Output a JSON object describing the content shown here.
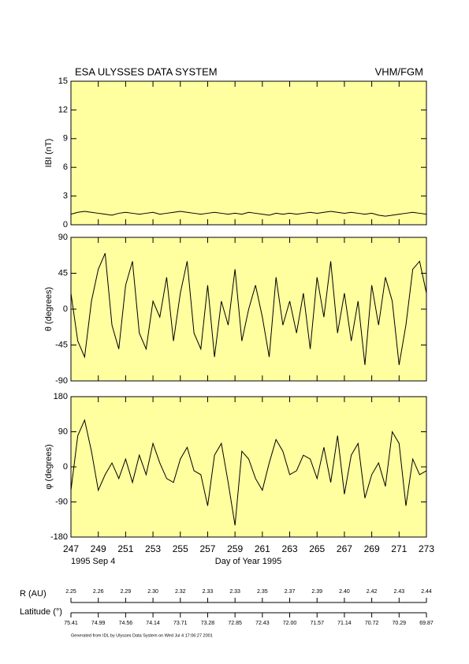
{
  "header": {
    "title": "ESA ULYSSES DATA SYSTEM",
    "instrument": "VHM/FGM"
  },
  "chart_data": [
    {
      "type": "line",
      "y_label": "IBI (nT)",
      "xlim": [
        247,
        273
      ],
      "xticks": [
        247,
        249,
        251,
        253,
        255,
        257,
        259,
        261,
        263,
        265,
        267,
        269,
        271,
        273
      ],
      "ylim": [
        0,
        15
      ],
      "yticks": [
        0,
        3,
        6,
        9,
        12,
        15
      ],
      "background": "#ffffa0",
      "x": [
        247,
        247.5,
        248,
        248.5,
        249,
        249.5,
        250,
        250.5,
        251,
        251.5,
        252,
        252.5,
        253,
        253.5,
        254,
        254.5,
        255,
        255.5,
        256,
        256.5,
        257,
        257.5,
        258,
        258.5,
        259,
        259.5,
        260,
        260.5,
        261,
        261.5,
        262,
        262.5,
        263,
        263.5,
        264,
        264.5,
        265,
        265.5,
        266,
        266.5,
        267,
        267.5,
        268,
        268.5,
        269,
        269.5,
        270,
        270.5,
        271,
        271.5,
        272,
        272.5,
        273
      ],
      "series": [
        {
          "color": "#000000",
          "values": [
            1.1,
            1.3,
            1.4,
            1.3,
            1.2,
            1.1,
            1.0,
            1.2,
            1.3,
            1.2,
            1.1,
            1.2,
            1.3,
            1.1,
            1.2,
            1.3,
            1.4,
            1.3,
            1.2,
            1.1,
            1.2,
            1.3,
            1.2,
            1.1,
            1.2,
            1.1,
            1.3,
            1.2,
            1.1,
            1.0,
            1.2,
            1.1,
            1.2,
            1.1,
            1.2,
            1.3,
            1.2,
            1.3,
            1.4,
            1.3,
            1.2,
            1.3,
            1.2,
            1.1,
            1.2,
            1.0,
            0.9,
            1.0,
            1.1,
            1.2,
            1.3,
            1.2,
            1.1
          ]
        }
      ]
    },
    {
      "type": "line",
      "y_label": "θ (degrees)",
      "xlim": [
        247,
        273
      ],
      "xticks": [
        247,
        249,
        251,
        253,
        255,
        257,
        259,
        261,
        263,
        265,
        267,
        269,
        271,
        273
      ],
      "ylim": [
        -90,
        90
      ],
      "yticks": [
        -90,
        -45,
        0,
        45,
        90
      ],
      "background": "#ffffa0",
      "x": [
        247,
        247.5,
        248,
        248.5,
        249,
        249.5,
        250,
        250.5,
        251,
        251.5,
        252,
        252.5,
        253,
        253.5,
        254,
        254.5,
        255,
        255.5,
        256,
        256.5,
        257,
        257.5,
        258,
        258.5,
        259,
        259.5,
        260,
        260.5,
        261,
        261.5,
        262,
        262.5,
        263,
        263.5,
        264,
        264.5,
        265,
        265.5,
        266,
        266.5,
        267,
        267.5,
        268,
        268.5,
        269,
        269.5,
        270,
        270.5,
        271,
        271.5,
        272,
        272.5,
        273
      ],
      "series": [
        {
          "color": "#000000",
          "values": [
            20,
            -40,
            -60,
            10,
            50,
            70,
            -20,
            -50,
            30,
            60,
            -30,
            -50,
            10,
            -10,
            40,
            -40,
            20,
            60,
            -30,
            -50,
            30,
            -60,
            10,
            -20,
            50,
            -40,
            0,
            30,
            -10,
            -60,
            40,
            -20,
            10,
            -30,
            20,
            -50,
            40,
            -10,
            60,
            -30,
            20,
            -40,
            10,
            -70,
            30,
            -20,
            40,
            10,
            -70,
            -20,
            50,
            60,
            20
          ]
        }
      ]
    },
    {
      "type": "line",
      "y_label": "φ (degrees)",
      "x_label": "Day of Year 1995",
      "start_date": "1995 Sep  4",
      "xlim": [
        247,
        273
      ],
      "xticks": [
        247,
        249,
        251,
        253,
        255,
        257,
        259,
        261,
        263,
        265,
        267,
        269,
        271,
        273
      ],
      "ylim": [
        -180,
        180
      ],
      "yticks": [
        -180,
        -90,
        0,
        90,
        180
      ],
      "background": "#ffffa0",
      "x": [
        247,
        247.5,
        248,
        248.5,
        249,
        249.5,
        250,
        250.5,
        251,
        251.5,
        252,
        252.5,
        253,
        253.5,
        254,
        254.5,
        255,
        255.5,
        256,
        256.5,
        257,
        257.5,
        258,
        258.5,
        259,
        259.5,
        260,
        260.5,
        261,
        261.5,
        262,
        262.5,
        263,
        263.5,
        264,
        264.5,
        265,
        265.5,
        266,
        266.5,
        267,
        267.5,
        268,
        268.5,
        269,
        269.5,
        270,
        270.5,
        271,
        271.5,
        272,
        272.5,
        273
      ],
      "series": [
        {
          "color": "#000000",
          "values": [
            -60,
            80,
            120,
            40,
            -60,
            -20,
            10,
            -30,
            20,
            -40,
            30,
            -20,
            60,
            10,
            -30,
            -40,
            20,
            50,
            -10,
            -20,
            -100,
            30,
            60,
            -40,
            -150,
            40,
            20,
            -30,
            -60,
            10,
            70,
            40,
            -20,
            -10,
            30,
            20,
            -30,
            50,
            -40,
            80,
            -70,
            30,
            60,
            -80,
            -20,
            10,
            -50,
            90,
            60,
            -100,
            20,
            -20,
            -10
          ]
        }
      ]
    }
  ],
  "orbit": {
    "r_label": "R (AU)",
    "lat_label": "Latitude (°)",
    "r_values": [
      "2.25",
      "2.26",
      "2.29",
      "2.30",
      "2.32",
      "2.33",
      "2.33",
      "2.35",
      "2.37",
      "2.39",
      "2.40",
      "2.42",
      "2.43",
      "2.44"
    ],
    "lat_values": [
      "75.41",
      "74.99",
      "74.56",
      "74.14",
      "73.71",
      "73.28",
      "72.85",
      "72.43",
      "72.00",
      "71.57",
      "71.14",
      "70.72",
      "70.29",
      "69.87"
    ]
  },
  "footer": "Generated from IDL by Ulysses Data System on Wed Jul  4 17:06:27 2001"
}
